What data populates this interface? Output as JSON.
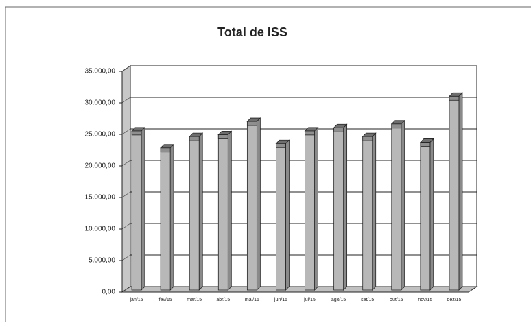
{
  "chart_data": {
    "type": "bar3d",
    "title": "Total de ISS",
    "categories": [
      "jan/15",
      "fev/15",
      "mar/15",
      "abr/15",
      "mai/15",
      "jun/15",
      "jul/15",
      "ago/15",
      "set/15",
      "out/15",
      "nov/15",
      "dez/15"
    ],
    "values": [
      26100,
      23400,
      25200,
      25500,
      27600,
      24100,
      26100,
      26600,
      25200,
      27200,
      24300,
      31600
    ],
    "color": "#b8b8b8",
    "ylim": [
      0,
      35000
    ],
    "yticks": [
      {
        "value": 0,
        "label": "0,00"
      },
      {
        "value": 5000,
        "label": "5.000,00"
      },
      {
        "value": 10000,
        "label": "10.000,00"
      },
      {
        "value": 15000,
        "label": "15.000,00"
      },
      {
        "value": 20000,
        "label": "20.000,00"
      },
      {
        "value": 25000,
        "label": "25.000,00"
      },
      {
        "value": 30000,
        "label": "30.000,00"
      },
      {
        "value": 35000,
        "label": "35.000,00"
      }
    ],
    "grid": true
  }
}
